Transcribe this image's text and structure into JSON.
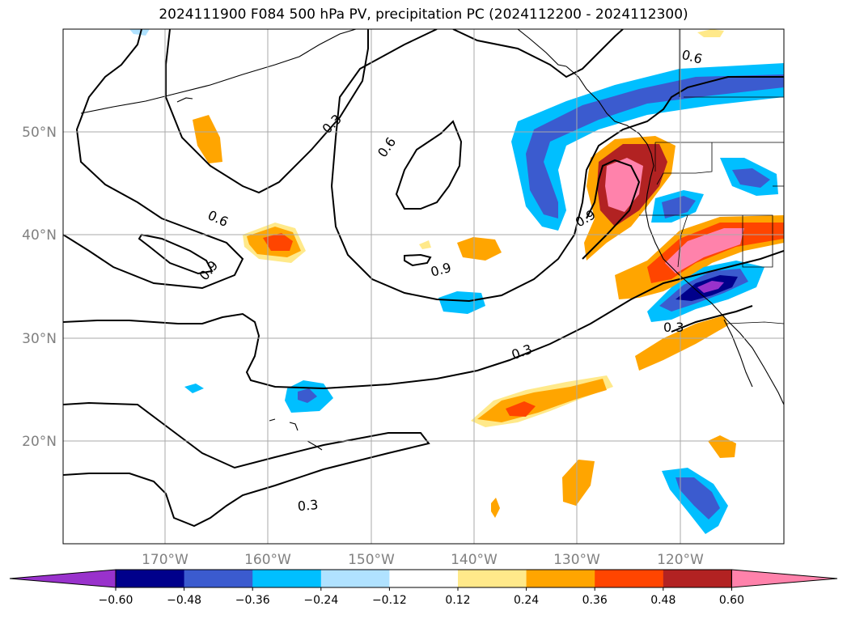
{
  "title": "2024111900 F084 500 hPa PV, precipitation PC (2024112200 - 2024112300)",
  "axes": {
    "lat_ticks": [
      "50°N",
      "40°N",
      "30°N",
      "20°N"
    ],
    "lon_ticks": [
      "170°W",
      "160°W",
      "150°W",
      "140°W",
      "130°W",
      "120°W"
    ]
  },
  "pv_contour_labels": [
    "0.3",
    "0.6",
    "0.6",
    "0.6",
    "0.9",
    "0.9",
    "0.9",
    "0.3",
    "0.3",
    "0.3"
  ],
  "colorbar": {
    "tick_labels": [
      "−0.60",
      "−0.48",
      "−0.36",
      "−0.24",
      "−0.12",
      "0.12",
      "0.24",
      "0.36",
      "0.48",
      "0.60"
    ],
    "colors": [
      "#9932cc",
      "#00008b",
      "#3b5bcf",
      "#00bfff",
      "#b0e2ff",
      "#ffffff",
      "#ffe98a",
      "#ffa500",
      "#ff4500",
      "#b22222",
      "#ff82ab"
    ]
  }
}
